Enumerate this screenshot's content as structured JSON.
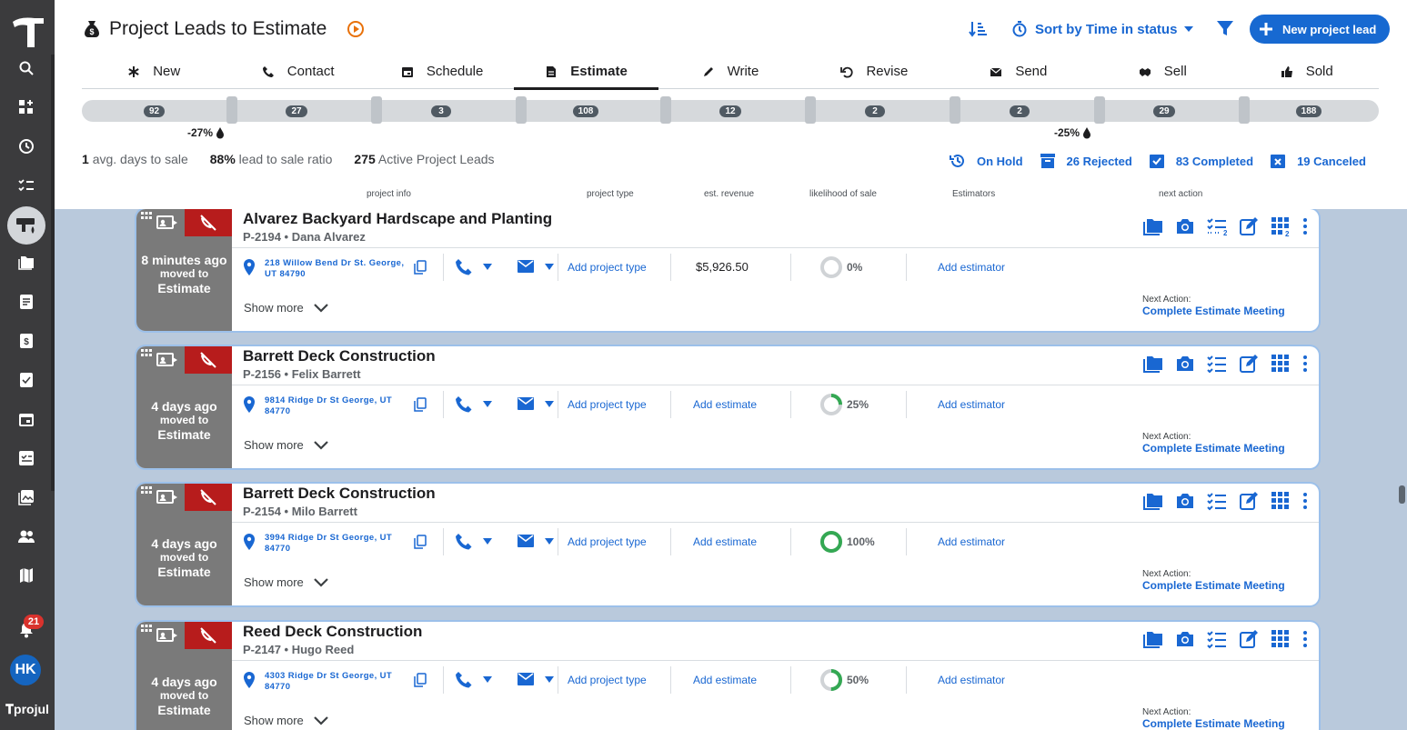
{
  "app": {
    "brand": "projul"
  },
  "sidebar": {
    "notification_count": "21",
    "user_initials": "HK"
  },
  "header": {
    "title": "Project Leads to Estimate",
    "sort_label": "Sort by Time in status",
    "new_button_label": "New project lead"
  },
  "tabs": [
    "New",
    "Contact",
    "Schedule",
    "Estimate",
    "Write",
    "Revise",
    "Send",
    "Sell",
    "Sold"
  ],
  "active_tab": "Estimate",
  "pipeline": {
    "counts": [
      "92",
      "27",
      "3",
      "108",
      "12",
      "2",
      "2",
      "29",
      "188"
    ],
    "notes": [
      "-27%",
      "-25%"
    ]
  },
  "stats": {
    "avg_days_value": "1",
    "avg_days_label": "avg. days to sale",
    "ratio_value": "88%",
    "ratio_label": "lead to sale ratio",
    "active_value": "275",
    "active_label": "Active Project Leads"
  },
  "status_links": {
    "on_hold": "On Hold",
    "rejected": "26 Rejected",
    "completed": "83 Completed",
    "canceled": "19 Canceled"
  },
  "columns": {
    "project_info": "project info",
    "project_type": "project type",
    "est_revenue": "est. revenue",
    "likelihood": "likelihood of sale",
    "estimators": "Estimators",
    "next_action": "next action"
  },
  "common": {
    "moved_to": "moved to",
    "stage": "Estimate",
    "add_project_type": "Add project type",
    "add_estimate": "Add estimate",
    "add_estimator": "Add estimator",
    "show_more": "Show more",
    "next_action_label": "Next Action:",
    "checklist_badge": "2",
    "grid_badge": "2"
  },
  "leads": [
    {
      "title": "Alvarez Backyard Hardscape and Planting",
      "code": "P-2194",
      "customer": "Dana Alvarez",
      "time_ago": "8 minutes ago",
      "address": "218 Willow Bend Dr St. George, UT 84790",
      "revenue": "$5,926.50",
      "likelihood": "0%",
      "likelihood_value": 0,
      "next_action": "Complete Estimate Meeting"
    },
    {
      "title": "Barrett Deck Construction",
      "code": "P-2156",
      "customer": "Felix Barrett",
      "time_ago": "4 days ago",
      "address": "9814 Ridge Dr St George, UT 84770",
      "revenue": "",
      "likelihood": "25%",
      "likelihood_value": 25,
      "next_action": "Complete Estimate Meeting"
    },
    {
      "title": "Barrett Deck Construction",
      "code": "P-2154",
      "customer": "Milo Barrett",
      "time_ago": "4 days ago",
      "address": "3994 Ridge Dr St George, UT 84770",
      "revenue": "",
      "likelihood": "100%",
      "likelihood_value": 100,
      "next_action": "Complete Estimate Meeting"
    },
    {
      "title": "Reed Deck Construction",
      "code": "P-2147",
      "customer": "Hugo Reed",
      "time_ago": "4 days ago",
      "address": "4303 Ridge Dr St George, UT 84770",
      "revenue": "",
      "likelihood": "50%",
      "likelihood_value": 50,
      "next_action": "Complete Estimate Meeting"
    }
  ],
  "colors": {
    "accent": "#1769d1",
    "danger": "#b71c1c",
    "donut_fill": "#34a853",
    "donut_track": "#d0d3d6"
  }
}
